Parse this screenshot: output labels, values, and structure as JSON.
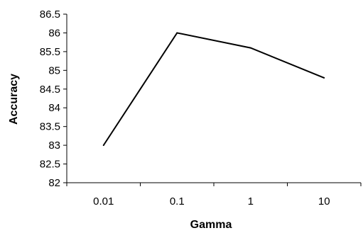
{
  "chart_data": {
    "type": "line",
    "title": "",
    "xlabel": "Gamma",
    "ylabel": "Accuracy",
    "x_scale": "log",
    "categories": [
      "0.01",
      "0.1",
      "1",
      "10"
    ],
    "series": [
      {
        "values": [
          83.0,
          86.0,
          85.6,
          84.8
        ]
      }
    ],
    "ylim": [
      82,
      86.5
    ],
    "y_ticks": [
      "82",
      "82.5",
      "83",
      "83.5",
      "84",
      "84.5",
      "85",
      "85.5",
      "86",
      "86.5"
    ],
    "grid": false,
    "legend": "none",
    "colors": {
      "line": "#000000",
      "axis": "#000000"
    }
  }
}
